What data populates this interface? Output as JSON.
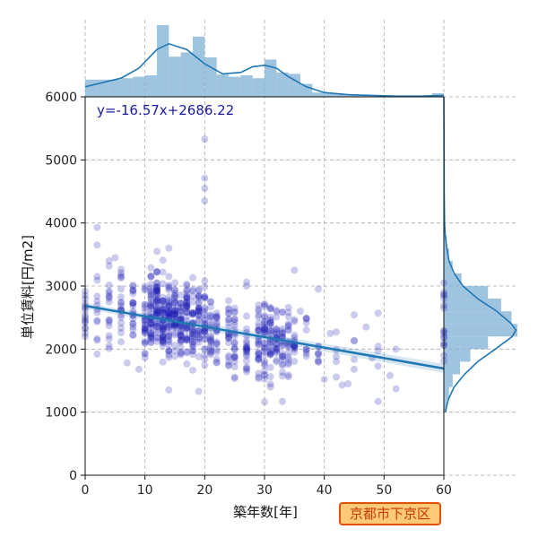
{
  "chart_data": {
    "type": "scatter",
    "xlabel": "築年数[年]",
    "ylabel": "単位賃料[円/m2]",
    "xlim": [
      0,
      60
    ],
    "ylim": [
      0,
      6000
    ],
    "x_ticks": [
      0,
      10,
      20,
      30,
      40,
      50,
      60
    ],
    "y_ticks": [
      0,
      1000,
      2000,
      3000,
      4000,
      5000,
      6000
    ],
    "grid": true,
    "point_color": "#1010b0",
    "regression": {
      "label": "y=-16.57x+2686.22",
      "slope": -16.57,
      "intercept": 2686.22,
      "color": "#1f77b4"
    },
    "marginal_color": "#7fb0d5",
    "area_label": "京都市下京区",
    "badge_colors": {
      "fill": "#ffc97a",
      "border": "#e0520a",
      "text": "#c23a00"
    },
    "clusters": [
      {
        "x": 0,
        "y": 2550,
        "sd": 230,
        "n": 14
      },
      {
        "x": 2,
        "y": 2600,
        "sd": 380,
        "n": 12
      },
      {
        "x": 4,
        "y": 2700,
        "sd": 380,
        "n": 16
      },
      {
        "x": 6,
        "y": 2650,
        "sd": 330,
        "n": 20
      },
      {
        "x": 8,
        "y": 2500,
        "sd": 330,
        "n": 22
      },
      {
        "x": 10,
        "y": 2520,
        "sd": 300,
        "n": 28
      },
      {
        "x": 11,
        "y": 2600,
        "sd": 310,
        "n": 42
      },
      {
        "x": 12,
        "y": 2620,
        "sd": 300,
        "n": 48
      },
      {
        "x": 13,
        "y": 2520,
        "sd": 300,
        "n": 46
      },
      {
        "x": 14,
        "y": 2500,
        "sd": 290,
        "n": 44
      },
      {
        "x": 15,
        "y": 2480,
        "sd": 300,
        "n": 40
      },
      {
        "x": 16,
        "y": 2450,
        "sd": 310,
        "n": 38
      },
      {
        "x": 17,
        "y": 2420,
        "sd": 300,
        "n": 40
      },
      {
        "x": 18,
        "y": 2380,
        "sd": 310,
        "n": 34
      },
      {
        "x": 19,
        "y": 2400,
        "sd": 300,
        "n": 30
      },
      {
        "x": 20,
        "y": 2350,
        "sd": 290,
        "n": 30
      },
      {
        "x": 21,
        "y": 2300,
        "sd": 290,
        "n": 22
      },
      {
        "x": 22,
        "y": 2280,
        "sd": 300,
        "n": 20
      },
      {
        "x": 24,
        "y": 2250,
        "sd": 310,
        "n": 22
      },
      {
        "x": 25,
        "y": 2200,
        "sd": 300,
        "n": 24
      },
      {
        "x": 27,
        "y": 2200,
        "sd": 320,
        "n": 24
      },
      {
        "x": 29,
        "y": 2180,
        "sd": 330,
        "n": 28
      },
      {
        "x": 30,
        "y": 2150,
        "sd": 330,
        "n": 32
      },
      {
        "x": 31,
        "y": 2150,
        "sd": 320,
        "n": 30
      },
      {
        "x": 32,
        "y": 2120,
        "sd": 300,
        "n": 24
      },
      {
        "x": 33,
        "y": 2100,
        "sd": 300,
        "n": 22
      },
      {
        "x": 34,
        "y": 2080,
        "sd": 290,
        "n": 20
      },
      {
        "x": 35,
        "y": 2050,
        "sd": 280,
        "n": 16
      },
      {
        "x": 37,
        "y": 2100,
        "sd": 260,
        "n": 10
      },
      {
        "x": 39,
        "y": 2000,
        "sd": 260,
        "n": 8
      },
      {
        "x": 42,
        "y": 1800,
        "sd": 250,
        "n": 5
      },
      {
        "x": 45,
        "y": 2100,
        "sd": 300,
        "n": 4
      },
      {
        "x": 49,
        "y": 1900,
        "sd": 300,
        "n": 4
      },
      {
        "x": 60,
        "y": 2350,
        "sd": 320,
        "n": 12
      }
    ],
    "points": [
      {
        "x": 20,
        "y": 5330
      },
      {
        "x": 20,
        "y": 4710
      },
      {
        "x": 20,
        "y": 4550
      },
      {
        "x": 20,
        "y": 4350
      },
      {
        "x": 2,
        "y": 3930
      },
      {
        "x": 2,
        "y": 3650
      },
      {
        "x": 14,
        "y": 3600
      },
      {
        "x": 12,
        "y": 3550
      },
      {
        "x": 4,
        "y": 3400
      },
      {
        "x": 5,
        "y": 3450
      },
      {
        "x": 35,
        "y": 3250
      },
      {
        "x": 39,
        "y": 2950
      },
      {
        "x": 0,
        "y": 2850
      },
      {
        "x": 0,
        "y": 2200
      },
      {
        "x": 60,
        "y": 2900
      },
      {
        "x": 60,
        "y": 3050
      },
      {
        "x": 60,
        "y": 2650
      },
      {
        "x": 60,
        "y": 1900
      },
      {
        "x": 60,
        "y": 2100
      },
      {
        "x": 49,
        "y": 1170
      },
      {
        "x": 52,
        "y": 1370
      },
      {
        "x": 51,
        "y": 1580
      },
      {
        "x": 52,
        "y": 2000
      },
      {
        "x": 47,
        "y": 2350
      },
      {
        "x": 45,
        "y": 1680
      },
      {
        "x": 44,
        "y": 1450
      },
      {
        "x": 43,
        "y": 1430
      },
      {
        "x": 48,
        "y": 1860
      },
      {
        "x": 33,
        "y": 1170
      },
      {
        "x": 14,
        "y": 1350
      },
      {
        "x": 19,
        "y": 1330
      },
      {
        "x": 7,
        "y": 1780
      },
      {
        "x": 9,
        "y": 1680
      },
      {
        "x": 36,
        "y": 2600
      },
      {
        "x": 41,
        "y": 2250
      },
      {
        "x": 40,
        "y": 1520
      }
    ],
    "x_histogram": {
      "bin_edges": [
        0,
        2,
        4,
        6,
        8,
        10,
        12,
        14,
        16,
        18,
        20,
        22,
        24,
        26,
        28,
        30,
        32,
        34,
        36,
        38,
        40,
        42,
        44,
        46,
        48,
        50,
        52,
        54,
        56,
        58,
        60
      ],
      "heights": [
        0.24,
        0.24,
        0.24,
        0.26,
        0.28,
        0.3,
        1.0,
        0.56,
        0.62,
        0.84,
        0.55,
        0.31,
        0.28,
        0.3,
        0.26,
        0.52,
        0.34,
        0.32,
        0.18,
        0.06,
        0.05,
        0.04,
        0.02,
        0.02,
        0.01,
        0.01,
        0.01,
        0.01,
        0.01,
        0.05
      ]
    },
    "x_kde": {
      "x": [
        0,
        3,
        6,
        9,
        12,
        14,
        17,
        20,
        23,
        26,
        28,
        30,
        32,
        34,
        37,
        40,
        44,
        48,
        52,
        56,
        60
      ],
      "density": [
        0.14,
        0.2,
        0.26,
        0.4,
        0.66,
        0.74,
        0.66,
        0.46,
        0.32,
        0.34,
        0.42,
        0.44,
        0.4,
        0.28,
        0.14,
        0.06,
        0.03,
        0.02,
        0.01,
        0.01,
        0.02
      ]
    },
    "y_histogram": {
      "bin_edges": [
        1000,
        1200,
        1400,
        1600,
        1800,
        2000,
        2200,
        2400,
        2600,
        2800,
        3000,
        3200,
        3400,
        3600,
        3800,
        4000
      ],
      "widths": [
        0.04,
        0.07,
        0.12,
        0.22,
        0.36,
        0.6,
        1.0,
        0.92,
        0.78,
        0.6,
        0.24,
        0.12,
        0.07,
        0.04,
        0.02
      ]
    },
    "y_kde": {
      "y": [
        1000,
        1200,
        1400,
        1600,
        1800,
        2000,
        2200,
        2300,
        2400,
        2600,
        2800,
        3000,
        3200,
        3400,
        3600,
        3800,
        4000,
        4500,
        5000,
        5500,
        6000
      ],
      "density": [
        0.02,
        0.06,
        0.14,
        0.28,
        0.46,
        0.7,
        0.93,
        0.98,
        0.92,
        0.72,
        0.46,
        0.26,
        0.14,
        0.07,
        0.04,
        0.02,
        0.01,
        0.005,
        0.004,
        0.002,
        0.0
      ]
    }
  }
}
